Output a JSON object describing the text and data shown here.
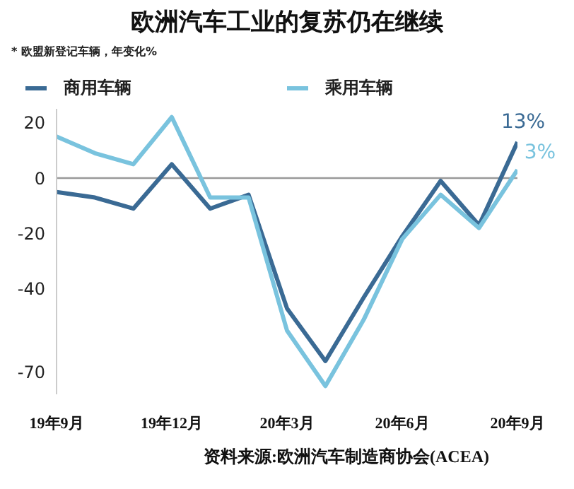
{
  "chart_data": {
    "type": "line",
    "title": "欧洲汽车工业的复苏仍在继续",
    "subtitle": "*  欧盟新登记车辆，年变化%",
    "categories": [
      "19年9月",
      null,
      null,
      "19年12月",
      null,
      null,
      "20年3月",
      null,
      null,
      "20年6月",
      null,
      null,
      "20年9月"
    ],
    "series": [
      {
        "name": "商用车辆",
        "color": "#3a6a94",
        "values": [
          -5,
          -7,
          -11,
          5,
          -11,
          -6,
          -47,
          -66,
          -43,
          -21,
          -1,
          -17,
          13
        ],
        "value_labels": [
          null,
          null,
          null,
          null,
          null,
          null,
          null,
          null,
          null,
          null,
          null,
          null,
          "13%"
        ]
      },
      {
        "name": "乘用车辆",
        "color": "#79c3de",
        "values": [
          15,
          9,
          5,
          22,
          -7,
          -7,
          -55,
          -75,
          -51,
          -22,
          -6,
          -18,
          3
        ],
        "value_labels": [
          null,
          null,
          null,
          null,
          null,
          null,
          null,
          null,
          null,
          null,
          null,
          null,
          "3%"
        ]
      }
    ],
    "ylim": [
      -78,
      25
    ],
    "yticks": [
      20,
      0,
      -20,
      -40,
      -70
    ],
    "ref_lines": [
      {
        "axis": "y",
        "value": 0,
        "color": "#999999"
      }
    ],
    "grid": false,
    "legend": "top left",
    "marker": "none",
    "line_style": "solid",
    "annotations": [
      "资料来源:欧洲汽车制造商协会(ACEA)"
    ]
  }
}
